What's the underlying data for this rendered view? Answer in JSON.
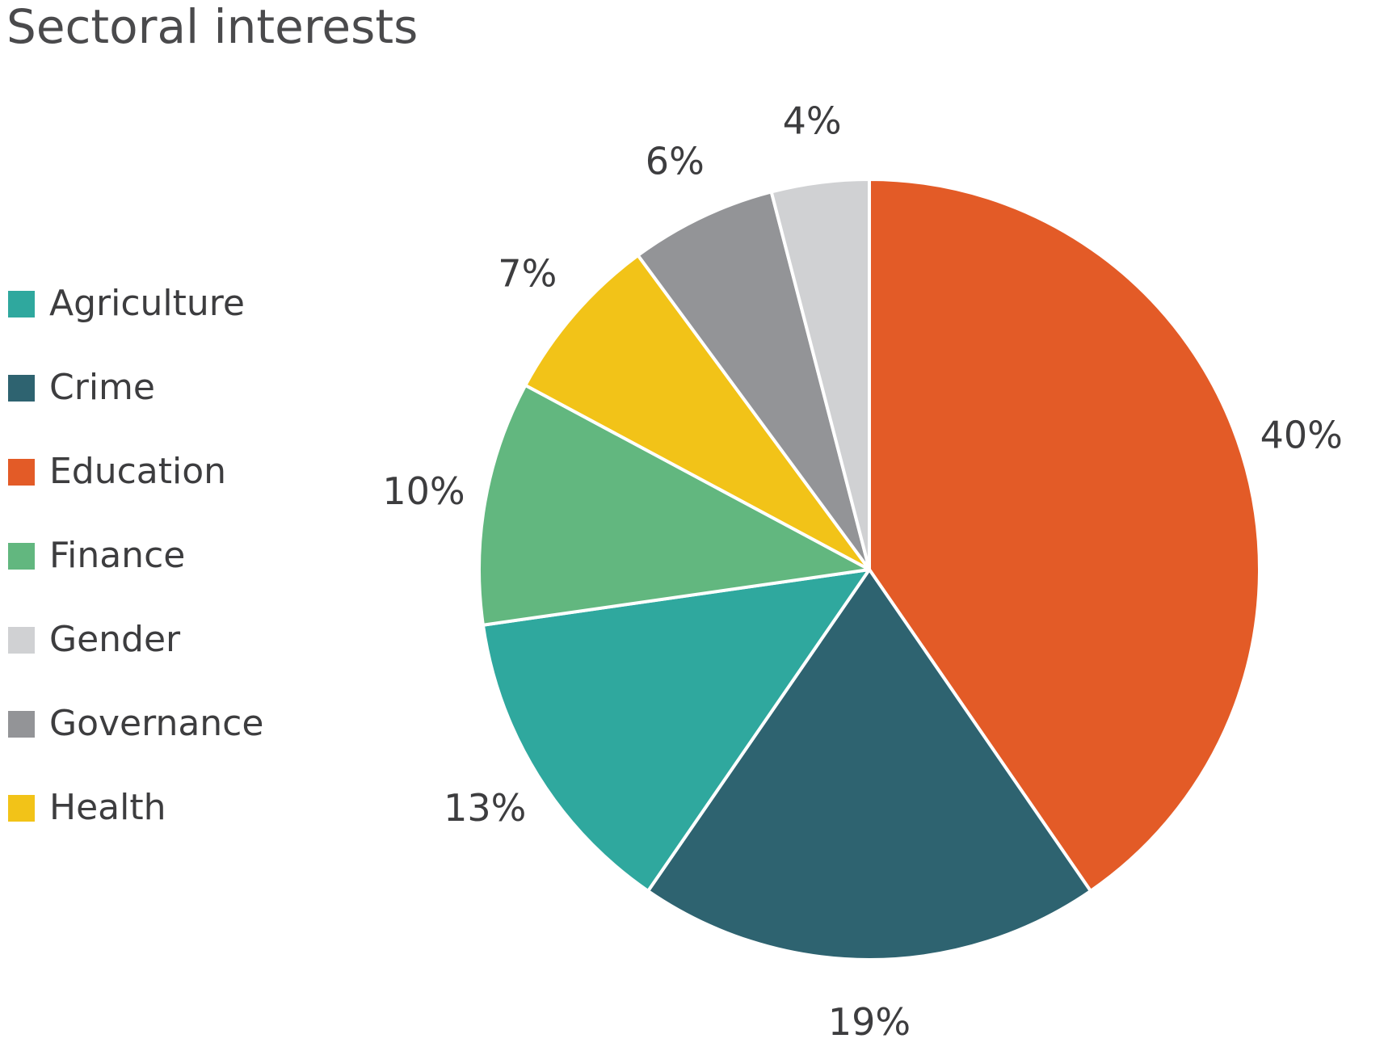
{
  "chart_data": {
    "type": "pie",
    "title": "Sectoral interests",
    "start_angle_deg": 0,
    "direction": "clockwise",
    "slice_stroke_color": "#ffffff",
    "slices": [
      {
        "name": "Education",
        "value": 40,
        "label": "40%",
        "color": "#E35B27"
      },
      {
        "name": "Crime",
        "value": 19,
        "label": "19%",
        "color": "#2E6370"
      },
      {
        "name": "Agriculture",
        "value": 13,
        "label": "13%",
        "color": "#2FA89E"
      },
      {
        "name": "Finance",
        "value": 10,
        "label": "10%",
        "color": "#62B77F"
      },
      {
        "name": "Health",
        "value": 7,
        "label": "7%",
        "color": "#F2C318"
      },
      {
        "name": "Governance",
        "value": 6,
        "label": "6%",
        "color": "#939497"
      },
      {
        "name": "Gender",
        "value": 4,
        "label": "4%",
        "color": "#D0D1D3"
      }
    ],
    "legend": {
      "placement": "left",
      "items": [
        {
          "label": "Agriculture",
          "color": "#2FA89E"
        },
        {
          "label": "Crime",
          "color": "#2E6370"
        },
        {
          "label": "Education",
          "color": "#E35B27"
        },
        {
          "label": "Finance",
          "color": "#62B77F"
        },
        {
          "label": "Gender",
          "color": "#D0D1D3"
        },
        {
          "label": "Governance",
          "color": "#939497"
        },
        {
          "label": "Health",
          "color": "#F2C318"
        }
      ]
    }
  }
}
